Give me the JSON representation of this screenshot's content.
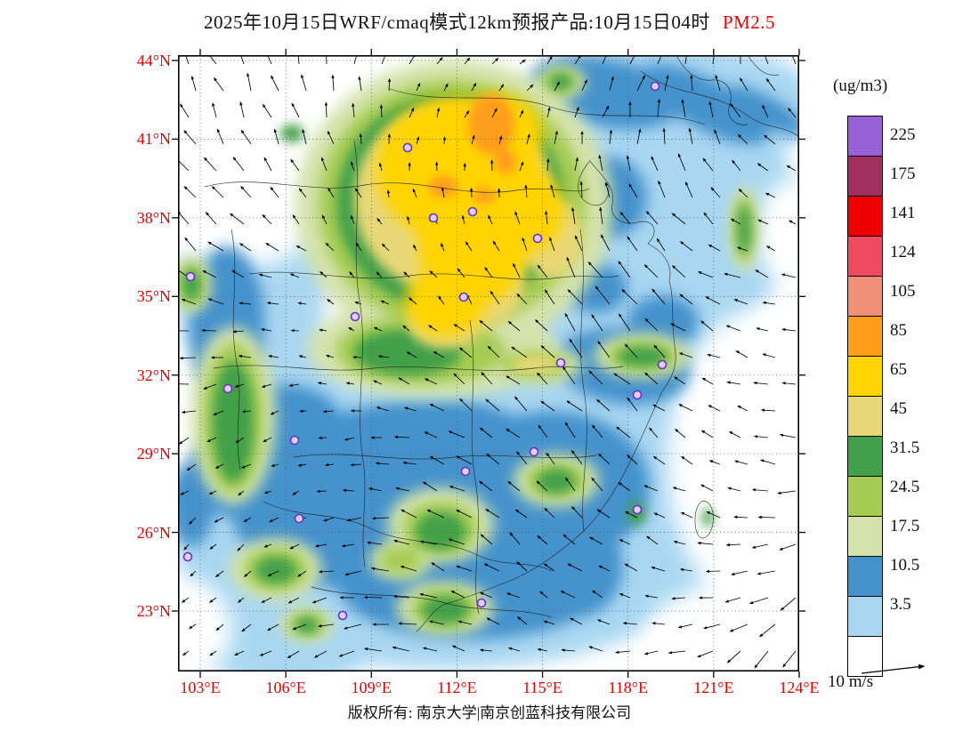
{
  "title": {
    "main": "2025年10月15日WRF/cmaq模式12km预报产品:10月15日04时",
    "species": "PM2.5"
  },
  "axes": {
    "lat": [
      "44°N",
      "41°N",
      "38°N",
      "35°N",
      "32°N",
      "29°N",
      "26°N",
      "23°N"
    ],
    "lon": [
      "103°E",
      "106°E",
      "109°E",
      "112°E",
      "115°E",
      "118°E",
      "121°E",
      "124°E"
    ]
  },
  "colorbar": {
    "units": "(ug/m3)",
    "labels": [
      "225",
      "175",
      "141",
      "124",
      "105",
      "85",
      "65",
      "45",
      "31.5",
      "24.5",
      "17.5",
      "10.5",
      "3.5"
    ],
    "colors": [
      "#9761d8",
      "#a03060",
      "#ee0000",
      "#ef4a60",
      "#f09078",
      "#ff9e1b",
      "#ffd400",
      "#e8d878",
      "#42a04a",
      "#a6cc52",
      "#d4e3ac",
      "#4492cc",
      "#a9d7f2",
      "#ffffff"
    ]
  },
  "wind_legend": {
    "label": "10 m/s"
  },
  "footer": {
    "copyright": "版权所有: 南京大学|南京创蓝科技有限公司"
  },
  "colors": {
    "accent_red": "#e60000",
    "marker_purple": "#6a30c8",
    "marker_fill": "#dcd0f5"
  },
  "map": {
    "markers": [
      [
        536,
        35
      ],
      [
        258,
        104
      ],
      [
        331,
        176
      ],
      [
        287,
        183
      ],
      [
        404,
        206
      ],
      [
        321,
        272
      ],
      [
        199,
        294
      ],
      [
        14,
        249
      ],
      [
        430,
        346
      ],
      [
        544,
        348
      ],
      [
        516,
        382
      ],
      [
        56,
        375
      ],
      [
        131,
        433
      ],
      [
        400,
        446
      ],
      [
        323,
        468
      ],
      [
        136,
        521
      ],
      [
        516,
        511
      ],
      [
        11,
        564
      ],
      [
        185,
        630
      ],
      [
        341,
        616
      ]
    ]
  }
}
